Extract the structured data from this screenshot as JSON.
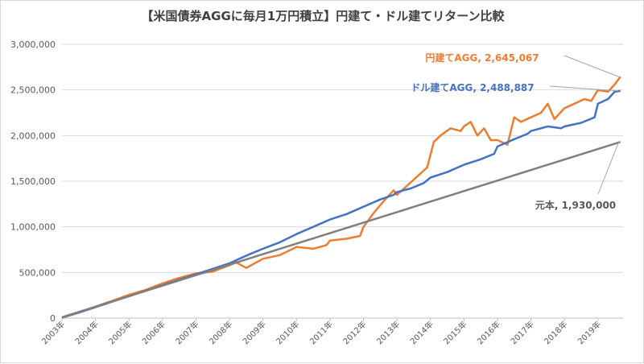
{
  "chart_data": {
    "type": "line",
    "title": "【米国債券AGGに毎月1万円積立】円建て・ドル建てリターン比較",
    "xlabel": "",
    "ylabel": "",
    "x_range": [
      2003.0,
      2019.75
    ],
    "ylim": [
      0,
      3000000
    ],
    "y_ticks": [
      0,
      500000,
      1000000,
      1500000,
      2000000,
      2500000,
      3000000
    ],
    "y_tick_labels": [
      "0",
      "500,000",
      "1,000,000",
      "1,500,000",
      "2,000,000",
      "2,500,000",
      "3,000,000"
    ],
    "x_ticks": [
      2003,
      2004,
      2005,
      2006,
      2007,
      2008,
      2009,
      2010,
      2011,
      2012,
      2013,
      2014,
      2015,
      2016,
      2017,
      2018,
      2019
    ],
    "x_tick_labels": [
      "2003年",
      "2004年",
      "2005年",
      "2006年",
      "2007年",
      "2008年",
      "2009年",
      "2010年",
      "2011年",
      "2012年",
      "2013年",
      "2014年",
      "2015年",
      "2016年",
      "2017年",
      "2018年",
      "2019年"
    ],
    "grid": true,
    "series": [
      {
        "name": "円建てAGG",
        "color": "#ed7d31",
        "end_label": "円建てAGG, 2,645,067",
        "x": [
          2003.0,
          2003.5,
          2004.0,
          2004.5,
          2005.0,
          2005.5,
          2006.0,
          2006.5,
          2007.0,
          2007.5,
          2008.0,
          2008.2,
          2008.5,
          2008.7,
          2009.0,
          2009.5,
          2009.9,
          2010.0,
          2010.5,
          2010.9,
          2011.0,
          2011.5,
          2011.9,
          2012.0,
          2012.3,
          2012.6,
          2012.9,
          2013.0,
          2013.3,
          2013.6,
          2013.9,
          2014.1,
          2014.3,
          2014.6,
          2014.9,
          2015.0,
          2015.2,
          2015.4,
          2015.6,
          2015.8,
          2016.0,
          2016.3,
          2016.5,
          2016.7,
          2017.0,
          2017.3,
          2017.5,
          2017.7,
          2018.0,
          2018.3,
          2018.6,
          2018.8,
          2019.0,
          2019.3,
          2019.5,
          2019.67
        ],
        "values": [
          5000,
          60000,
          125000,
          190000,
          255000,
          310000,
          380000,
          440000,
          490000,
          510000,
          580000,
          610000,
          550000,
          590000,
          650000,
          690000,
          760000,
          780000,
          760000,
          800000,
          850000,
          870000,
          900000,
          1000000,
          1150000,
          1280000,
          1400000,
          1350000,
          1450000,
          1550000,
          1650000,
          1930000,
          2000000,
          2080000,
          2050000,
          2100000,
          2150000,
          2000000,
          2080000,
          1950000,
          1950000,
          1900000,
          2200000,
          2150000,
          2200000,
          2250000,
          2350000,
          2180000,
          2300000,
          2350000,
          2400000,
          2380000,
          2500000,
          2480000,
          2560000,
          2645067
        ]
      },
      {
        "name": "ドル建てAGG",
        "color": "#4472c4",
        "end_label": "ドル建てAGG, 2,488,887",
        "x": [
          2003.0,
          2003.5,
          2004.0,
          2004.5,
          2005.0,
          2005.5,
          2006.0,
          2006.5,
          2007.0,
          2007.5,
          2008.0,
          2008.3,
          2008.6,
          2009.0,
          2009.5,
          2010.0,
          2010.5,
          2011.0,
          2011.5,
          2012.0,
          2012.5,
          2012.9,
          2013.0,
          2013.4,
          2013.8,
          2014.0,
          2014.5,
          2015.0,
          2015.5,
          2015.9,
          2016.0,
          2016.5,
          2016.9,
          2017.0,
          2017.5,
          2017.9,
          2018.0,
          2018.5,
          2018.9,
          2019.0,
          2019.3,
          2019.5,
          2019.67
        ],
        "values": [
          5000,
          60000,
          120000,
          180000,
          240000,
          300000,
          360000,
          420000,
          480000,
          540000,
          600000,
          650000,
          700000,
          760000,
          830000,
          920000,
          1000000,
          1080000,
          1140000,
          1220000,
          1300000,
          1350000,
          1380000,
          1420000,
          1480000,
          1540000,
          1600000,
          1680000,
          1740000,
          1800000,
          1880000,
          1960000,
          2020000,
          2050000,
          2100000,
          2080000,
          2100000,
          2140000,
          2200000,
          2350000,
          2400000,
          2480000,
          2488887
        ]
      },
      {
        "name": "元本",
        "color": "#7f7f7f",
        "end_label": "元本, 1,930,000",
        "x": [
          2003.0,
          2019.67
        ],
        "values": [
          10000,
          1930000
        ]
      }
    ],
    "legend": "end-labels"
  }
}
